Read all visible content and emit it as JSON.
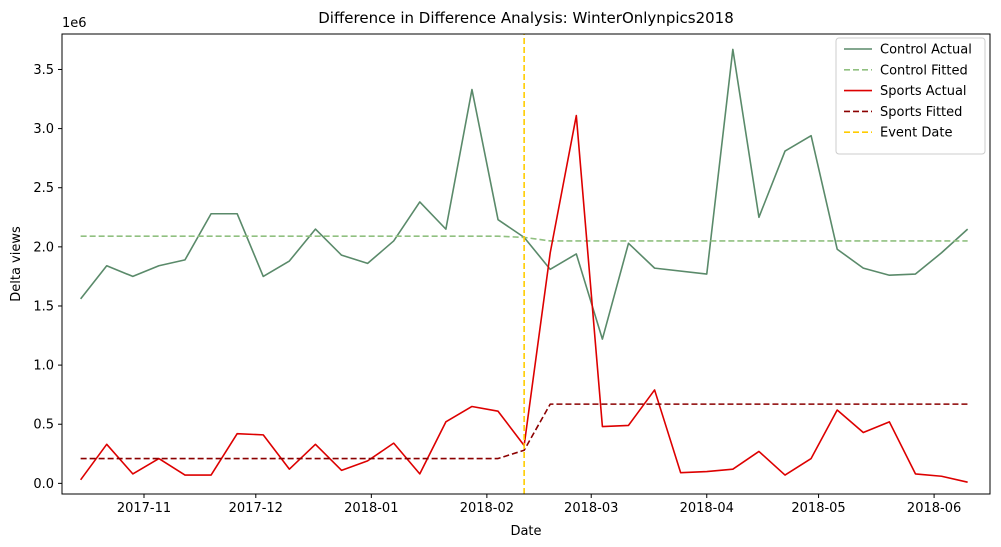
{
  "chart_data": {
    "type": "line",
    "title": "Difference in Difference Analysis: WinterOnlynpics2018",
    "xlabel": "Date",
    "ylabel": "Delta views",
    "y_multiplier_label": "1e6",
    "x_type": "date",
    "xlim": [
      "2017-10-10",
      "2018-06-16"
    ],
    "ylim": [
      -0.09,
      3.8
    ],
    "y_unit": "millions",
    "x_ticks": [
      "2017-11-01",
      "2017-12-01",
      "2018-01-01",
      "2018-02-01",
      "2018-03-01",
      "2018-04-01",
      "2018-05-01",
      "2018-06-01"
    ],
    "x_tick_labels": [
      "2017-11",
      "2017-12",
      "2018-01",
      "2018-02",
      "2018-03",
      "2018-04",
      "2018-05",
      "2018-06"
    ],
    "y_ticks": [
      0.0,
      0.5,
      1.0,
      1.5,
      2.0,
      2.5,
      3.0,
      3.5
    ],
    "y_tick_labels": [
      "0.0",
      "0.5",
      "1.0",
      "1.5",
      "2.0",
      "2.5",
      "3.0",
      "3.5"
    ],
    "grid": false,
    "legend_position": "top-right",
    "event_date": "2018-02-11",
    "series": [
      {
        "name": "Control Actual",
        "color": "#5a8a6a",
        "style": "solid",
        "x": [
          "2017-10-15",
          "2017-10-22",
          "2017-10-29",
          "2017-11-05",
          "2017-11-12",
          "2017-11-19",
          "2017-11-26",
          "2017-12-03",
          "2017-12-10",
          "2017-12-17",
          "2017-12-24",
          "2017-12-31",
          "2018-01-07",
          "2018-01-14",
          "2018-01-21",
          "2018-01-28",
          "2018-02-04",
          "2018-02-11",
          "2018-02-18",
          "2018-02-25",
          "2018-03-04",
          "2018-03-11",
          "2018-03-18",
          "2018-04-01",
          "2018-04-08",
          "2018-04-15",
          "2018-04-22",
          "2018-04-29",
          "2018-05-06",
          "2018-05-13",
          "2018-05-20",
          "2018-05-27",
          "2018-06-03",
          "2018-06-10"
        ],
        "y": [
          1.56,
          1.84,
          1.75,
          1.84,
          1.89,
          2.28,
          2.28,
          1.75,
          1.88,
          2.15,
          1.93,
          1.86,
          2.05,
          2.38,
          2.15,
          3.33,
          2.23,
          2.08,
          1.81,
          1.94,
          1.22,
          2.03,
          1.82,
          1.77,
          3.67,
          2.25,
          2.81,
          2.94,
          1.98,
          1.82,
          1.76,
          1.77,
          1.95,
          2.15
        ]
      },
      {
        "name": "Control Fitted",
        "color": "#90c080",
        "style": "dashed",
        "x": [
          "2017-10-15",
          "2018-02-04",
          "2018-02-11",
          "2018-02-18",
          "2018-06-10"
        ],
        "y": [
          2.09,
          2.09,
          2.08,
          2.05,
          2.05
        ]
      },
      {
        "name": "Sports Actual",
        "color": "#dd0000",
        "style": "solid",
        "x": [
          "2017-10-15",
          "2017-10-22",
          "2017-10-29",
          "2017-11-05",
          "2017-11-12",
          "2017-11-19",
          "2017-11-26",
          "2017-12-03",
          "2017-12-10",
          "2017-12-17",
          "2017-12-24",
          "2017-12-31",
          "2018-01-07",
          "2018-01-14",
          "2018-01-21",
          "2018-01-28",
          "2018-02-04",
          "2018-02-11",
          "2018-02-18",
          "2018-02-25",
          "2018-03-04",
          "2018-03-11",
          "2018-03-18",
          "2018-03-25",
          "2018-04-01",
          "2018-04-08",
          "2018-04-15",
          "2018-04-22",
          "2018-04-29",
          "2018-05-06",
          "2018-05-13",
          "2018-05-20",
          "2018-05-27",
          "2018-06-03",
          "2018-06-10"
        ],
        "y": [
          0.03,
          0.33,
          0.08,
          0.21,
          0.07,
          0.07,
          0.42,
          0.41,
          0.12,
          0.33,
          0.11,
          0.19,
          0.34,
          0.08,
          0.52,
          0.65,
          0.61,
          0.32,
          1.95,
          3.11,
          0.48,
          0.49,
          0.79,
          0.09,
          0.1,
          0.12,
          0.27,
          0.07,
          0.21,
          0.62,
          0.43,
          0.52,
          0.08,
          0.06,
          0.01
        ]
      },
      {
        "name": "Sports Fitted",
        "color": "#8b0000",
        "style": "dashed",
        "x": [
          "2017-10-15",
          "2018-02-04",
          "2018-02-11",
          "2018-02-18",
          "2018-06-10"
        ],
        "y": [
          0.21,
          0.21,
          0.28,
          0.67,
          0.67
        ]
      },
      {
        "name": "Event Date",
        "color": "#ffcc00",
        "style": "dashed",
        "x": [
          "2018-02-11",
          "2018-02-11"
        ],
        "y": [
          -0.09,
          3.8
        ]
      }
    ]
  }
}
